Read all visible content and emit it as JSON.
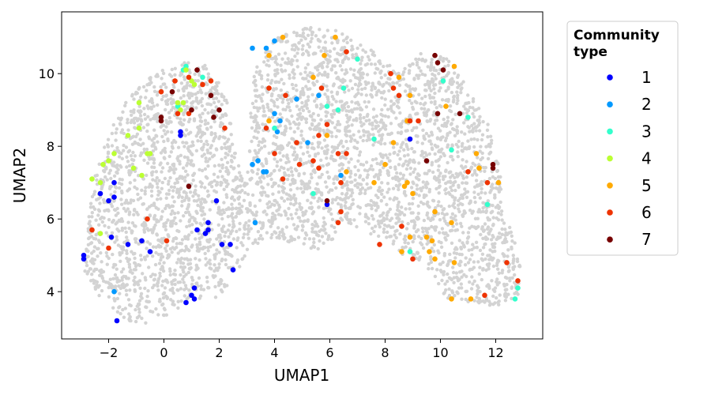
{
  "chart_data": {
    "type": "scatter",
    "title": "",
    "xlabel": "UMAP1",
    "ylabel": "UMAP2",
    "xlim": [
      -3.7,
      13.7
    ],
    "ylim": [
      2.7,
      11.7
    ],
    "xticks": [
      -2,
      0,
      2,
      4,
      6,
      8,
      10,
      12
    ],
    "xtick_labels": [
      "−2",
      "0",
      "2",
      "4",
      "6",
      "8",
      "10",
      "12"
    ],
    "yticks": [
      4,
      6,
      8,
      10
    ],
    "ytick_labels": [
      "4",
      "6",
      "8",
      "10"
    ],
    "grid": false,
    "legend_position": "outside-right",
    "legend_title": "Community\ntype",
    "background_color": "#d3d3d3",
    "series": [
      {
        "name": "1",
        "color": "#0000ff",
        "points": [
          [
            -2.9,
            4.9
          ],
          [
            -2.9,
            5.0
          ],
          [
            -2.3,
            6.7
          ],
          [
            -2.0,
            6.5
          ],
          [
            -1.8,
            6.6
          ],
          [
            -1.8,
            7.0
          ],
          [
            -1.9,
            5.5
          ],
          [
            -1.7,
            3.2
          ],
          [
            -1.3,
            5.3
          ],
          [
            -0.8,
            5.4
          ],
          [
            -0.5,
            5.1
          ],
          [
            0.6,
            8.3
          ],
          [
            0.6,
            8.4
          ],
          [
            1.2,
            5.7
          ],
          [
            1.5,
            5.6
          ],
          [
            1.6,
            5.9
          ],
          [
            1.6,
            5.7
          ],
          [
            1.9,
            6.5
          ],
          [
            2.1,
            5.3
          ],
          [
            2.4,
            5.3
          ],
          [
            2.5,
            4.6
          ],
          [
            0.8,
            3.7
          ],
          [
            1.0,
            3.9
          ],
          [
            1.1,
            3.8
          ],
          [
            1.1,
            4.1
          ],
          [
            5.9,
            6.4
          ],
          [
            8.9,
            8.2
          ]
        ]
      },
      {
        "name": "2",
        "color": "#0099ff",
        "points": [
          [
            3.2,
            10.7
          ],
          [
            3.7,
            10.7
          ],
          [
            4.0,
            10.9
          ],
          [
            3.2,
            7.5
          ],
          [
            3.4,
            7.6
          ],
          [
            3.6,
            7.3
          ],
          [
            3.7,
            7.3
          ],
          [
            4.0,
            8.9
          ],
          [
            4.1,
            8.4
          ],
          [
            4.2,
            8.7
          ],
          [
            4.8,
            9.3
          ],
          [
            5.2,
            8.1
          ],
          [
            5.6,
            9.4
          ],
          [
            3.3,
            5.9
          ],
          [
            -1.8,
            4.0
          ],
          [
            6.4,
            7.2
          ]
        ]
      },
      {
        "name": "3",
        "color": "#33ffcc",
        "points": [
          [
            0.7,
            10.1
          ],
          [
            0.8,
            10.2
          ],
          [
            1.4,
            9.9
          ],
          [
            0.5,
            9.1
          ],
          [
            4.0,
            8.5
          ],
          [
            5.9,
            9.1
          ],
          [
            6.3,
            9.0
          ],
          [
            6.5,
            9.6
          ],
          [
            7.0,
            10.4
          ],
          [
            7.6,
            8.2
          ],
          [
            10.1,
            9.8
          ],
          [
            10.4,
            7.9
          ],
          [
            11.0,
            8.8
          ],
          [
            11.7,
            6.4
          ],
          [
            12.8,
            4.1
          ],
          [
            12.7,
            3.8
          ],
          [
            5.4,
            6.7
          ],
          [
            8.9,
            5.1
          ]
        ]
      },
      {
        "name": "4",
        "color": "#bbff33",
        "points": [
          [
            -2.6,
            7.1
          ],
          [
            -2.3,
            7.0
          ],
          [
            -2.2,
            7.5
          ],
          [
            -2.0,
            7.6
          ],
          [
            -1.8,
            7.8
          ],
          [
            -1.3,
            8.3
          ],
          [
            -1.1,
            7.4
          ],
          [
            -0.9,
            9.2
          ],
          [
            -0.9,
            8.5
          ],
          [
            -0.8,
            7.2
          ],
          [
            -0.6,
            7.8
          ],
          [
            -0.5,
            7.8
          ],
          [
            -2.3,
            5.6
          ],
          [
            1.1,
            9.7
          ],
          [
            1.0,
            9.8
          ],
          [
            0.5,
            9.2
          ],
          [
            0.7,
            9.2
          ],
          [
            0.6,
            9.0
          ],
          [
            0.8,
            10.1
          ],
          [
            11.4,
            7.4
          ]
        ]
      },
      {
        "name": "5",
        "color": "#ffaa00",
        "points": [
          [
            3.8,
            10.5
          ],
          [
            4.3,
            11.0
          ],
          [
            5.8,
            10.5
          ],
          [
            6.2,
            11.0
          ],
          [
            5.4,
            9.9
          ],
          [
            3.8,
            8.7
          ],
          [
            6.6,
            7.3
          ],
          [
            7.6,
            7.0
          ],
          [
            8.0,
            7.5
          ],
          [
            8.3,
            8.1
          ],
          [
            8.5,
            9.9
          ],
          [
            8.8,
            8.7
          ],
          [
            8.9,
            9.4
          ],
          [
            8.8,
            7.0
          ],
          [
            9.0,
            6.7
          ],
          [
            8.9,
            5.5
          ],
          [
            8.6,
            5.1
          ],
          [
            9.5,
            5.5
          ],
          [
            9.7,
            5.4
          ],
          [
            9.6,
            5.1
          ],
          [
            9.8,
            4.9
          ],
          [
            9.8,
            6.2
          ],
          [
            10.4,
            5.9
          ],
          [
            10.5,
            4.8
          ],
          [
            10.4,
            3.8
          ],
          [
            11.1,
            3.8
          ],
          [
            10.2,
            9.1
          ],
          [
            10.5,
            10.2
          ],
          [
            11.3,
            7.8
          ],
          [
            11.4,
            7.4
          ],
          [
            12.1,
            7.0
          ],
          [
            5.9,
            8.3
          ],
          [
            8.7,
            6.9
          ]
        ]
      },
      {
        "name": "6",
        "color": "#ee3300",
        "points": [
          [
            -2.6,
            5.7
          ],
          [
            -2.0,
            5.2
          ],
          [
            -0.6,
            6.0
          ],
          [
            0.1,
            5.4
          ],
          [
            -0.1,
            9.5
          ],
          [
            0.4,
            9.8
          ],
          [
            0.9,
            9.9
          ],
          [
            1.4,
            9.7
          ],
          [
            1.7,
            9.8
          ],
          [
            0.5,
            8.9
          ],
          [
            0.9,
            8.9
          ],
          [
            2.2,
            8.5
          ],
          [
            3.7,
            8.5
          ],
          [
            3.8,
            9.6
          ],
          [
            4.0,
            7.8
          ],
          [
            4.4,
            9.4
          ],
          [
            4.3,
            7.1
          ],
          [
            4.8,
            8.1
          ],
          [
            4.9,
            7.5
          ],
          [
            5.4,
            7.6
          ],
          [
            5.6,
            8.3
          ],
          [
            5.6,
            7.4
          ],
          [
            5.7,
            9.6
          ],
          [
            5.9,
            8.6
          ],
          [
            6.3,
            7.8
          ],
          [
            6.6,
            7.8
          ],
          [
            6.4,
            7.0
          ],
          [
            6.4,
            6.2
          ],
          [
            6.3,
            5.9
          ],
          [
            6.6,
            10.6
          ],
          [
            7.8,
            5.3
          ],
          [
            8.2,
            10.0
          ],
          [
            8.3,
            9.6
          ],
          [
            8.5,
            9.4
          ],
          [
            8.6,
            5.8
          ],
          [
            8.9,
            8.7
          ],
          [
            9.0,
            4.9
          ],
          [
            9.2,
            8.7
          ],
          [
            11.0,
            7.3
          ],
          [
            11.7,
            7.0
          ],
          [
            11.6,
            3.9
          ],
          [
            12.4,
            4.8
          ],
          [
            12.8,
            4.3
          ]
        ]
      },
      {
        "name": "7",
        "color": "#770000",
        "points": [
          [
            -0.1,
            8.8
          ],
          [
            -0.1,
            8.7
          ],
          [
            0.3,
            9.5
          ],
          [
            1.0,
            9.0
          ],
          [
            1.2,
            10.1
          ],
          [
            1.7,
            9.4
          ],
          [
            1.8,
            8.8
          ],
          [
            2.0,
            9.0
          ],
          [
            0.9,
            6.9
          ],
          [
            5.9,
            6.5
          ],
          [
            9.5,
            7.6
          ],
          [
            9.8,
            10.5
          ],
          [
            9.9,
            10.3
          ],
          [
            10.1,
            10.1
          ],
          [
            9.9,
            8.9
          ],
          [
            10.7,
            8.9
          ],
          [
            11.9,
            7.5
          ],
          [
            11.9,
            7.4
          ]
        ]
      }
    ]
  }
}
